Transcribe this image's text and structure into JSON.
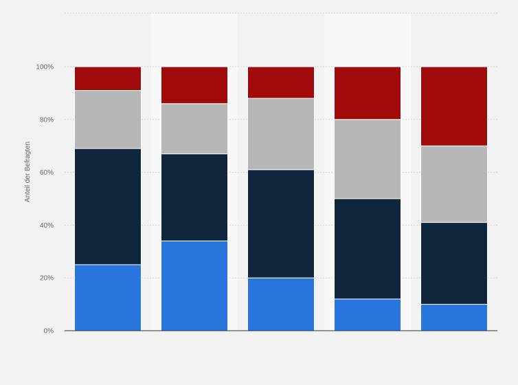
{
  "chart_data": {
    "type": "bar",
    "stacked": true,
    "orientation": "vertical",
    "categories": [
      "",
      "",
      "",
      "",
      ""
    ],
    "series": [
      {
        "color": "#2876dd",
        "values": [
          25,
          34,
          20,
          12,
          10
        ]
      },
      {
        "color": "#0f263c",
        "values": [
          44,
          33,
          41,
          38,
          31
        ]
      },
      {
        "color": "#b7b7b7",
        "values": [
          22,
          19,
          27,
          30,
          29
        ]
      },
      {
        "color": "#a10a0a",
        "values": [
          9,
          14,
          12,
          20,
          30
        ]
      }
    ],
    "ylabel": "Anteil der Befragten",
    "ylim": [
      0,
      100
    ],
    "yticks": [
      "0%",
      "20%",
      "40%",
      "60%",
      "80%",
      "100%"
    ],
    "grid": true,
    "legend": "none"
  }
}
